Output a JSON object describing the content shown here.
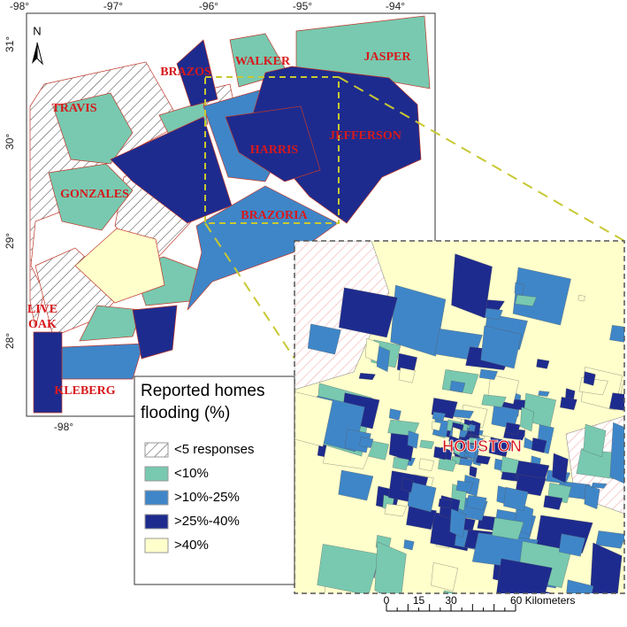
{
  "north_arrow": "N",
  "lon_ticks_top": [
    "-98°",
    "-97°",
    "-96°",
    "-95°",
    "-94°"
  ],
  "lon_ticks_bottom": [
    "-98°"
  ],
  "lat_ticks": [
    "31°",
    "30°",
    "29°",
    "28°"
  ],
  "county_labels": [
    "BRAZOS",
    "WALKER",
    "JASPER",
    "TRAVIS",
    "HARRIS",
    "JEFFERSON",
    "GONZALES",
    "BRAZORIA",
    [
      "LIVE",
      "OAK"
    ],
    "KLEBERG"
  ],
  "inset_label": "HOUSTON",
  "legend": {
    "title": [
      "Reported homes",
      "flooding (%)"
    ],
    "items": [
      {
        "label": "<5 responses",
        "color": "hatch"
      },
      {
        "label": "<10%",
        "color": "#78c9b0"
      },
      {
        "label": ">10%-25%",
        "color": "#3f86c8"
      },
      {
        "label": ">25%-40%",
        "color": "#1e2b8e"
      },
      {
        "label": ">40%",
        "color": "#ffffcc"
      }
    ]
  },
  "scale_bar": {
    "ticks": [
      "0",
      "15",
      "30",
      "60 Kilometers"
    ]
  }
}
